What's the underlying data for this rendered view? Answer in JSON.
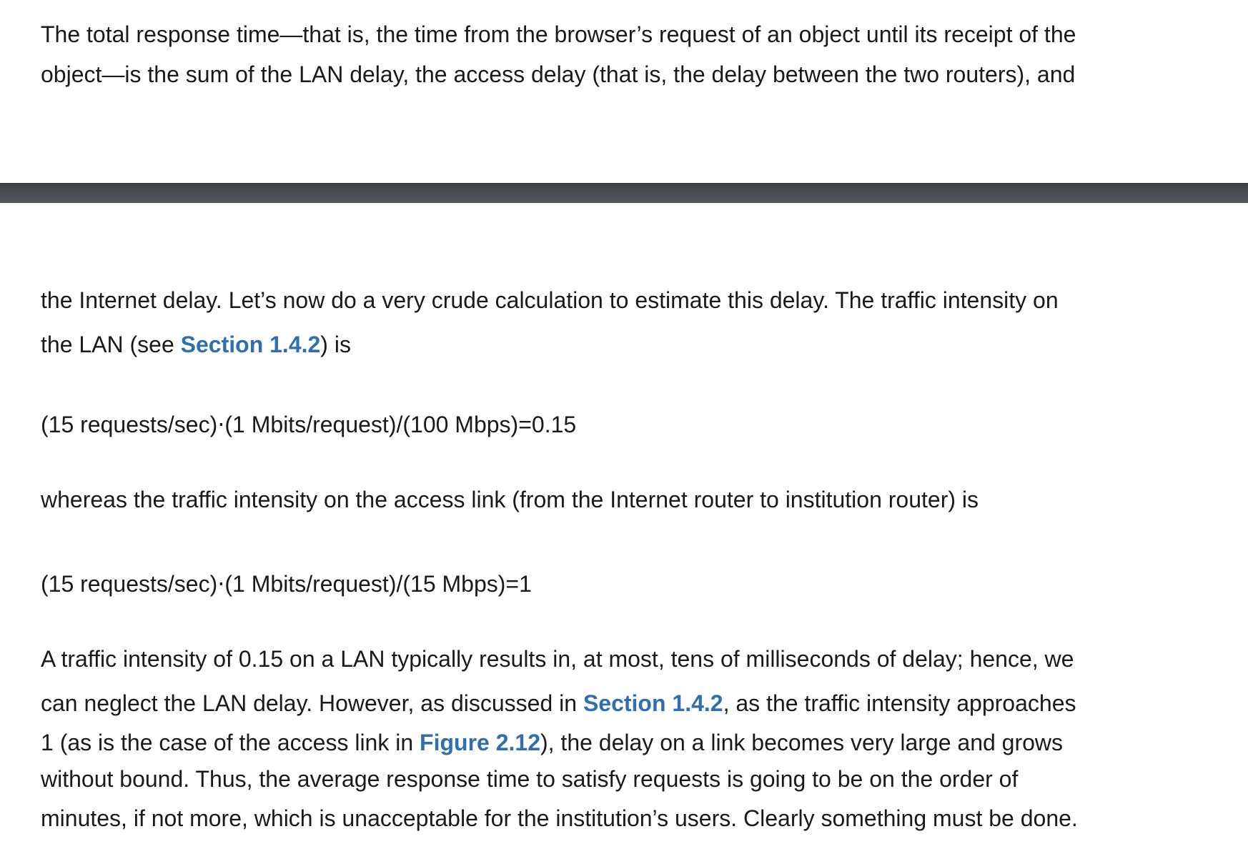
{
  "page1": {
    "lines": [
      "The total response time—that is, the time from the browser’s request of an object until its receipt of the",
      "object—is the sum of the LAN delay, the access delay (that is, the delay between the two routers), and"
    ]
  },
  "page2": {
    "para1": {
      "line1": "the Internet delay. Let’s now do a very crude calculation to estimate this delay. The traffic intensity on",
      "line2_pre": "the LAN (see ",
      "line2_link": "Section 1.4.2",
      "line2_post": ") is"
    },
    "equation1": "(15 requests/sec)⋅(1 Mbits/request)/(100 Mbps)=0.15",
    "para2": "whereas the traffic intensity on the access link (from the Internet router to institution router) is",
    "equation2": "(15 requests/sec)⋅(1 Mbits/request)/(15 Mbps)=1",
    "para3": {
      "line1": "A traffic intensity of 0.15 on a LAN typically results in, at most, tens of milliseconds of delay; hence, we",
      "line2_pre": "can neglect the LAN delay. However, as discussed in ",
      "line2_link": "Section 1.4.2",
      "line2_post": ", as the traffic intensity approaches",
      "line3_pre": "1 (as is the case of the access link in ",
      "line3_link": "Figure 2.12",
      "line3_post": "), the delay on a link becomes very large and grows",
      "line4": "without bound. Thus, the average response time to satisfy requests is going to be on the order of",
      "line5": "minutes, if not more, which is unacceptable for the institution’s users. Clearly something must be done."
    }
  }
}
